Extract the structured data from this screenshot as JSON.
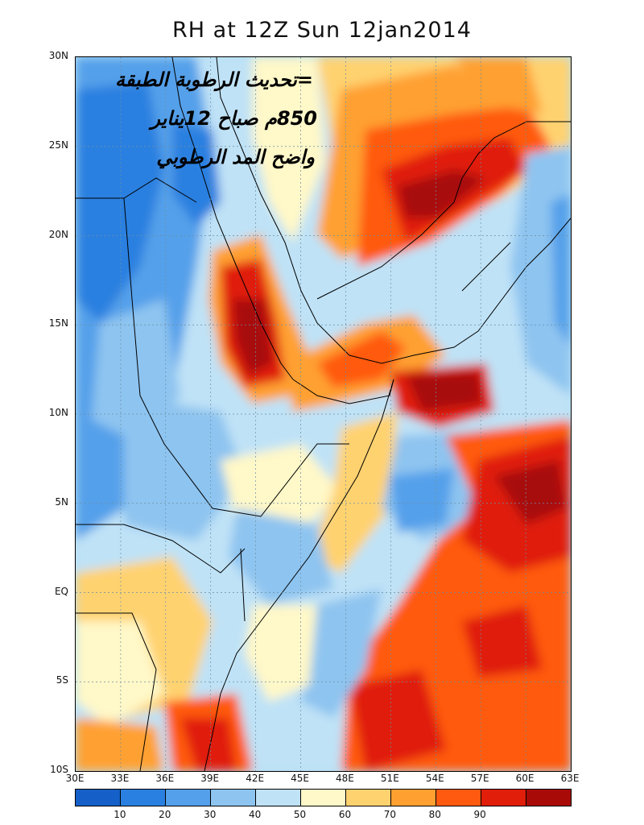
{
  "title": "RH at 12Z Sun 12jan2014",
  "annotation_lines": [
    "=تحديث الرطوبة الطبقة",
    "850م صباح 12يناير",
    "واضح المد الرطوبي"
  ],
  "axes": {
    "x_labels": [
      "30E",
      "33E",
      "36E",
      "39E",
      "42E",
      "45E",
      "48E",
      "51E",
      "54E",
      "57E",
      "60E",
      "63E"
    ],
    "y_labels": [
      "30N",
      "25N",
      "20N",
      "15N",
      "10N",
      "5N",
      "EQ",
      "5S",
      "10S"
    ],
    "lon_range": [
      30,
      63
    ],
    "lat_range": [
      -10,
      30
    ]
  },
  "colorbar": {
    "colors": [
      "#1560c8",
      "#2a80e0",
      "#54a0ea",
      "#8ec4f0",
      "#bfe2f6",
      "#fff8c8",
      "#ffd270",
      "#ffa030",
      "#ff5a10",
      "#e01e0a",
      "#a80a08"
    ],
    "labels": [
      "10",
      "20",
      "30",
      "40",
      "50",
      "60",
      "70",
      "80",
      "90"
    ]
  },
  "palette": {
    "map_bg": "#b7e0f2",
    "coast": "#000000"
  }
}
